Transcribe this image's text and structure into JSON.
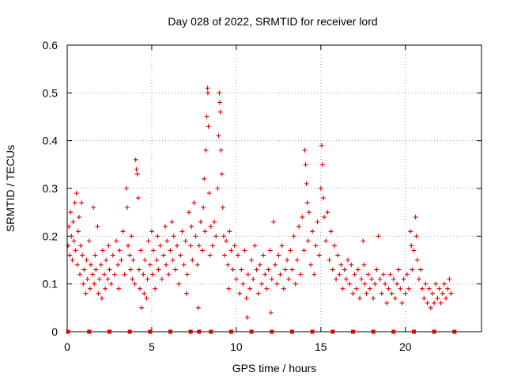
{
  "chart_data": {
    "type": "scatter",
    "title": "Day 028 of 2022, SRMTID for receiver lord",
    "xlabel": "GPS time / hours",
    "ylabel": "SRMTID / TECUs",
    "xlim": [
      0,
      24.5
    ],
    "ylim": [
      0,
      0.6
    ],
    "xticks": [
      0,
      5,
      10,
      15,
      20
    ],
    "yticks": [
      0,
      0.1,
      0.2,
      0.3,
      0.4,
      0.5,
      0.6
    ],
    "ytick_labels": [
      "0",
      "0.1",
      "0.2",
      "0.3",
      "0.4",
      "0.5",
      "0.6"
    ],
    "grid": true,
    "marker": "+",
    "color": "#e00000",
    "zero_markers_x": [
      0.05,
      1.3,
      2.5,
      3.7,
      4.9,
      6.1,
      7.3,
      7.8,
      8.5,
      9.7,
      10.9,
      12.1,
      13.3,
      14.5,
      15.7,
      16.9,
      18.1,
      19.3,
      20.5,
      21.7,
      22.9
    ],
    "series": [
      {
        "name": "SRMTID",
        "points": [
          [
            0.05,
            0.18
          ],
          [
            0.1,
            0.22
          ],
          [
            0.15,
            0.16
          ],
          [
            0.2,
            0.25
          ],
          [
            0.25,
            0.2
          ],
          [
            0.3,
            0.15
          ],
          [
            0.35,
            0.23
          ],
          [
            0.4,
            0.19
          ],
          [
            0.45,
            0.27
          ],
          [
            0.5,
            0.17
          ],
          [
            0.55,
            0.29
          ],
          [
            0.6,
            0.14
          ],
          [
            0.65,
            0.21
          ],
          [
            0.7,
            0.24
          ],
          [
            0.75,
            0.12
          ],
          [
            0.8,
            0.18
          ],
          [
            0.85,
            0.27
          ],
          [
            0.9,
            0.16
          ],
          [
            0.95,
            0.1
          ],
          [
            1.0,
            0.13
          ],
          [
            1.1,
            0.08
          ],
          [
            1.15,
            0.15
          ],
          [
            1.2,
            0.11
          ],
          [
            1.3,
            0.19
          ],
          [
            1.35,
            0.09
          ],
          [
            1.4,
            0.14
          ],
          [
            1.5,
            0.12
          ],
          [
            1.55,
            0.26
          ],
          [
            1.6,
            0.1
          ],
          [
            1.65,
            0.16
          ],
          [
            1.7,
            0.13
          ],
          [
            1.8,
            0.22
          ],
          [
            1.85,
            0.08
          ],
          [
            1.9,
            0.11
          ],
          [
            2.0,
            0.14
          ],
          [
            2.05,
            0.07
          ],
          [
            2.1,
            0.17
          ],
          [
            2.2,
            0.12
          ],
          [
            2.25,
            0.09
          ],
          [
            2.3,
            0.15
          ],
          [
            2.4,
            0.11
          ],
          [
            2.45,
            0.18
          ],
          [
            2.5,
            0.13
          ],
          [
            2.6,
            0.1
          ],
          [
            2.7,
            0.16
          ],
          [
            2.8,
            0.12
          ],
          [
            2.9,
            0.19
          ],
          [
            3.0,
            0.14
          ],
          [
            3.05,
            0.09
          ],
          [
            3.1,
            0.17
          ],
          [
            3.2,
            0.15
          ],
          [
            3.3,
            0.21
          ],
          [
            3.4,
            0.12
          ],
          [
            3.5,
            0.3
          ],
          [
            3.55,
            0.26
          ],
          [
            3.6,
            0.18
          ],
          [
            3.7,
            0.16
          ],
          [
            3.75,
            0.13
          ],
          [
            3.8,
            0.2
          ],
          [
            3.85,
            0.11
          ],
          [
            3.9,
            0.15
          ],
          [
            4.0,
            0.1
          ],
          [
            4.05,
            0.36
          ],
          [
            4.1,
            0.34
          ],
          [
            4.15,
            0.33
          ],
          [
            4.2,
            0.28
          ],
          [
            4.25,
            0.13
          ],
          [
            4.3,
            0.09
          ],
          [
            4.35,
            0.17
          ],
          [
            4.4,
            0.05
          ],
          [
            4.5,
            0.12
          ],
          [
            4.55,
            0.08
          ],
          [
            4.6,
            0.15
          ],
          [
            4.7,
            0.07
          ],
          [
            4.75,
            0.11
          ],
          [
            4.8,
            0.19
          ],
          [
            4.9,
            0.14
          ],
          [
            5.0,
            0.21
          ],
          [
            5.05,
            0.12
          ],
          [
            5.1,
            0.17
          ],
          [
            5.2,
            0.09
          ],
          [
            5.3,
            0.15
          ],
          [
            5.35,
            0.2
          ],
          [
            5.4,
            0.13
          ],
          [
            5.5,
            0.18
          ],
          [
            5.6,
            0.11
          ],
          [
            5.7,
            0.16
          ],
          [
            5.8,
            0.22
          ],
          [
            5.85,
            0.14
          ],
          [
            5.9,
            0.19
          ],
          [
            6.0,
            0.12
          ],
          [
            6.1,
            0.17
          ],
          [
            6.2,
            0.23
          ],
          [
            6.25,
            0.15
          ],
          [
            6.3,
            0.2
          ],
          [
            6.4,
            0.13
          ],
          [
            6.5,
            0.18
          ],
          [
            6.6,
            0.1
          ],
          [
            6.7,
            0.16
          ],
          [
            6.8,
            0.21
          ],
          [
            6.9,
            0.14
          ],
          [
            7.0,
            0.19
          ],
          [
            7.05,
            0.08
          ],
          [
            7.1,
            0.12
          ],
          [
            7.2,
            0.25
          ],
          [
            7.3,
            0.18
          ],
          [
            7.35,
            0.22
          ],
          [
            7.4,
            0.15
          ],
          [
            7.5,
            0.27
          ],
          [
            7.6,
            0.2
          ],
          [
            7.7,
            0.14
          ],
          [
            7.75,
            0.05
          ],
          [
            7.8,
            0.18
          ],
          [
            7.9,
            0.23
          ],
          [
            8.0,
            0.17
          ],
          [
            8.05,
            0.26
          ],
          [
            8.1,
            0.32
          ],
          [
            8.15,
            0.21
          ],
          [
            8.2,
            0.38
          ],
          [
            8.25,
            0.45
          ],
          [
            8.3,
            0.51
          ],
          [
            8.32,
            0.5
          ],
          [
            8.35,
            0.43
          ],
          [
            8.4,
            0.29
          ],
          [
            8.45,
            0.16
          ],
          [
            8.5,
            0.22
          ],
          [
            8.6,
            0.18
          ],
          [
            8.7,
            0.23
          ],
          [
            8.8,
            0.2
          ],
          [
            8.9,
            0.3
          ],
          [
            8.95,
            0.41
          ],
          [
            9.0,
            0.5
          ],
          [
            9.02,
            0.48
          ],
          [
            9.05,
            0.46
          ],
          [
            9.1,
            0.38
          ],
          [
            9.15,
            0.33
          ],
          [
            9.2,
            0.26
          ],
          [
            9.25,
            0.2
          ],
          [
            9.3,
            0.16
          ],
          [
            9.4,
            0.19
          ],
          [
            9.5,
            0.14
          ],
          [
            9.55,
            0.09
          ],
          [
            9.6,
            0.21
          ],
          [
            9.7,
            0.17
          ],
          [
            9.8,
            0.13
          ],
          [
            9.9,
            0.18
          ],
          [
            10.0,
            0.11
          ],
          [
            10.1,
            0.16
          ],
          [
            10.2,
            0.08
          ],
          [
            10.3,
            0.13
          ],
          [
            10.4,
            0.1
          ],
          [
            10.5,
            0.17
          ],
          [
            10.6,
            0.07
          ],
          [
            10.65,
            0.03
          ],
          [
            10.7,
            0.12
          ],
          [
            10.8,
            0.09
          ],
          [
            10.9,
            0.15
          ],
          [
            11.0,
            0.11
          ],
          [
            11.1,
            0.18
          ],
          [
            11.2,
            0.13
          ],
          [
            11.3,
            0.08
          ],
          [
            11.4,
            0.14
          ],
          [
            11.5,
            0.1
          ],
          [
            11.6,
            0.16
          ],
          [
            11.7,
            0.12
          ],
          [
            11.8,
            0.09
          ],
          [
            11.9,
            0.13
          ],
          [
            12.0,
            0.17
          ],
          [
            12.05,
            0.04
          ],
          [
            12.1,
            0.11
          ],
          [
            12.2,
            0.23
          ],
          [
            12.3,
            0.14
          ],
          [
            12.4,
            0.1
          ],
          [
            12.5,
            0.16
          ],
          [
            12.6,
            0.12
          ],
          [
            12.7,
            0.18
          ],
          [
            12.8,
            0.09
          ],
          [
            12.9,
            0.13
          ],
          [
            13.0,
            0.15
          ],
          [
            13.1,
            0.11
          ],
          [
            13.2,
            0.17
          ],
          [
            13.3,
            0.13
          ],
          [
            13.4,
            0.2
          ],
          [
            13.5,
            0.1
          ],
          [
            13.6,
            0.15
          ],
          [
            13.7,
            0.22
          ],
          [
            13.8,
            0.12
          ],
          [
            13.9,
            0.24
          ],
          [
            14.0,
            0.17
          ],
          [
            14.05,
            0.38
          ],
          [
            14.1,
            0.35
          ],
          [
            14.15,
            0.31
          ],
          [
            14.2,
            0.27
          ],
          [
            14.25,
            0.19
          ],
          [
            14.3,
            0.25
          ],
          [
            14.4,
            0.14
          ],
          [
            14.5,
            0.21
          ],
          [
            14.6,
            0.12
          ],
          [
            14.7,
            0.18
          ],
          [
            14.8,
            0.23
          ],
          [
            14.9,
            0.16
          ],
          [
            15.0,
            0.3
          ],
          [
            15.05,
            0.39
          ],
          [
            15.1,
            0.35
          ],
          [
            15.15,
            0.28
          ],
          [
            15.2,
            0.24
          ],
          [
            15.3,
            0.19
          ],
          [
            15.4,
            0.25
          ],
          [
            15.5,
            0.15
          ],
          [
            15.6,
            0.21
          ],
          [
            15.7,
            0.13
          ],
          [
            15.8,
            0.18
          ],
          [
            15.9,
            0.11
          ],
          [
            16.0,
            0.16
          ],
          [
            16.1,
            0.12
          ],
          [
            16.2,
            0.14
          ],
          [
            16.3,
            0.09
          ],
          [
            16.4,
            0.13
          ],
          [
            16.5,
            0.11
          ],
          [
            16.6,
            0.15
          ],
          [
            16.7,
            0.1
          ],
          [
            16.8,
            0.14
          ],
          [
            16.9,
            0.08
          ],
          [
            17.0,
            0.12
          ],
          [
            17.1,
            0.09
          ],
          [
            17.2,
            0.13
          ],
          [
            17.3,
            0.07
          ],
          [
            17.4,
            0.11
          ],
          [
            17.5,
            0.19
          ],
          [
            17.55,
            0.14
          ],
          [
            17.6,
            0.1
          ],
          [
            17.7,
            0.08
          ],
          [
            17.8,
            0.12
          ],
          [
            17.9,
            0.09
          ],
          [
            18.0,
            0.11
          ],
          [
            18.1,
            0.07
          ],
          [
            18.2,
            0.1
          ],
          [
            18.3,
            0.13
          ],
          [
            18.4,
            0.2
          ],
          [
            18.5,
            0.11
          ],
          [
            18.6,
            0.08
          ],
          [
            18.7,
            0.12
          ],
          [
            18.8,
            0.1
          ],
          [
            18.9,
            0.06
          ],
          [
            19.0,
            0.09
          ],
          [
            19.1,
            0.12
          ],
          [
            19.2,
            0.08
          ],
          [
            19.3,
            0.11
          ],
          [
            19.4,
            0.07
          ],
          [
            19.5,
            0.1
          ],
          [
            19.6,
            0.13
          ],
          [
            19.7,
            0.09
          ],
          [
            19.8,
            0.06
          ],
          [
            19.9,
            0.11
          ],
          [
            20.0,
            0.08
          ],
          [
            20.1,
            0.12
          ],
          [
            20.2,
            0.09
          ],
          [
            20.3,
            0.21
          ],
          [
            20.35,
            0.18
          ],
          [
            20.4,
            0.13
          ],
          [
            20.5,
            0.17
          ],
          [
            20.6,
            0.24
          ],
          [
            20.65,
            0.2
          ],
          [
            20.7,
            0.15
          ],
          [
            20.8,
            0.11
          ],
          [
            20.9,
            0.13
          ],
          [
            21.0,
            0.09
          ],
          [
            21.1,
            0.07
          ],
          [
            21.2,
            0.1
          ],
          [
            21.3,
            0.06
          ],
          [
            21.4,
            0.09
          ],
          [
            21.5,
            0.05
          ],
          [
            21.6,
            0.08
          ],
          [
            21.7,
            0.06
          ],
          [
            21.8,
            0.1
          ],
          [
            21.9,
            0.07
          ],
          [
            22.0,
            0.09
          ],
          [
            22.1,
            0.06
          ],
          [
            22.2,
            0.08
          ],
          [
            22.3,
            0.1
          ],
          [
            22.4,
            0.07
          ],
          [
            22.5,
            0.09
          ],
          [
            22.6,
            0.11
          ],
          [
            22.7,
            0.08
          ]
        ]
      }
    ]
  }
}
